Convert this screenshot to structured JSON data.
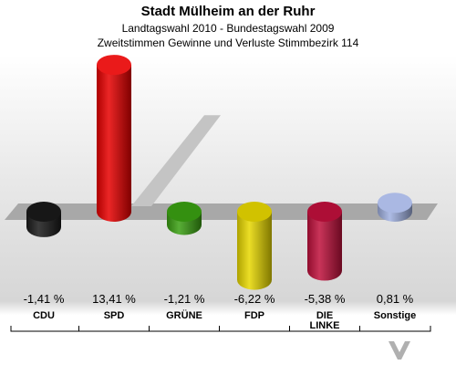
{
  "header": {
    "title": "Stadt Mülheim an der Ruhr",
    "subtitle1": "Landtagswahl 2010 - Bundestagswahl 2009",
    "subtitle2": "Zweitstimmen Gewinne und Verluste Stimmbezirk 114"
  },
  "logo": {
    "text": "VOTE MANAGER"
  },
  "chart_data": {
    "type": "bar",
    "title": "Stadt Mülheim an der Ruhr",
    "subtitle": "Landtagswahl 2010 - Bundestagswahl 2009 / Zweitstimmen Gewinne und Verluste Stimmbezirk 114",
    "categories": [
      "CDU",
      "SPD",
      "GRÜNE",
      "FDP",
      "DIE LINKE",
      "Sonstige"
    ],
    "values": [
      -1.41,
      13.41,
      -1.21,
      -6.22,
      -5.38,
      0.81
    ],
    "value_labels": [
      "-1,41 %",
      "13,41 %",
      "-1,21 %",
      "-6,22 %",
      "-5,38 %",
      "0,81 %"
    ],
    "colors": [
      "#1a1a1a",
      "#e80000",
      "#3aa012",
      "#e8d800",
      "#c0103c",
      "#a0b0e0"
    ],
    "ylim": [
      -7,
      14
    ],
    "grid": false,
    "legend": "none"
  }
}
